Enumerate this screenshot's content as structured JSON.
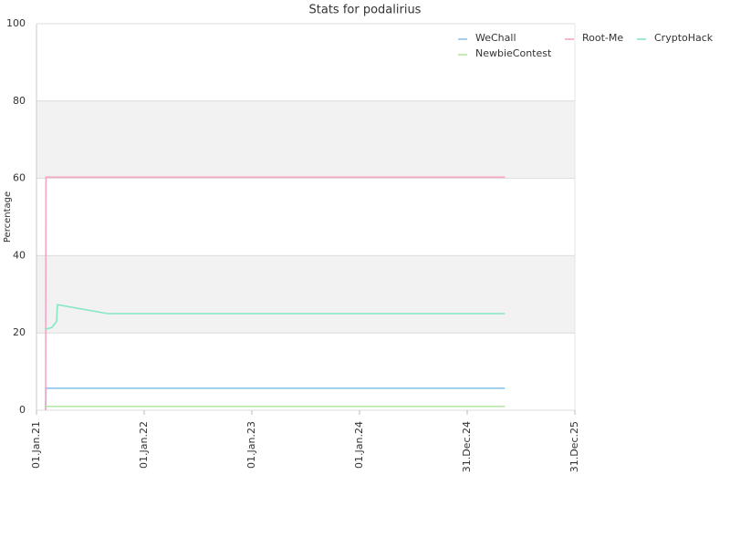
{
  "chart_data": {
    "type": "line",
    "title": "Stats for podalirius",
    "y_label": "Percentage",
    "x": [
      "2021-02-01",
      "2021-02-02",
      "2021-02-22",
      "2021-03-10",
      "2021-03-13",
      "2021-08-30",
      "2025-05-08"
    ],
    "series": [
      {
        "name": "WeChall",
        "color": "#8cc4ec",
        "values": [
          0,
          5.7,
          5.7,
          5.7,
          5.7,
          5.7,
          5.7
        ]
      },
      {
        "name": "Root-Me",
        "color": "#f4a6c4",
        "values": [
          0,
          60.3,
          60.3,
          60.3,
          60.3,
          60.3,
          60.3
        ]
      },
      {
        "name": "CryptoHack",
        "color": "#86e8c2",
        "values": [
          21,
          21,
          21.4,
          23,
          27.3,
          25,
          25
        ]
      },
      {
        "name": "NewbieContest",
        "color": "#b2e8a4",
        "values": [
          1,
          1,
          1,
          1,
          1,
          1,
          1
        ]
      }
    ],
    "xlim": [
      "2021-01-01",
      "2025-12-31"
    ],
    "xticks": [
      {
        "value": "2021-01-01",
        "label": "01.Jan.21"
      },
      {
        "value": "2022-01-01",
        "label": "01.Jan.22"
      },
      {
        "value": "2023-01-01",
        "label": "01.Jan.23"
      },
      {
        "value": "2024-01-01",
        "label": "01.Jan.24"
      },
      {
        "value": "2024-12-31",
        "label": "31.Dec.24"
      },
      {
        "value": "2025-12-31",
        "label": "31.Dec.25"
      }
    ],
    "ylim": [
      0,
      100
    ],
    "yticks": [
      0,
      20,
      40,
      60,
      80,
      100
    ],
    "grid": true,
    "alternate_bands": true,
    "legend": "upper right"
  }
}
